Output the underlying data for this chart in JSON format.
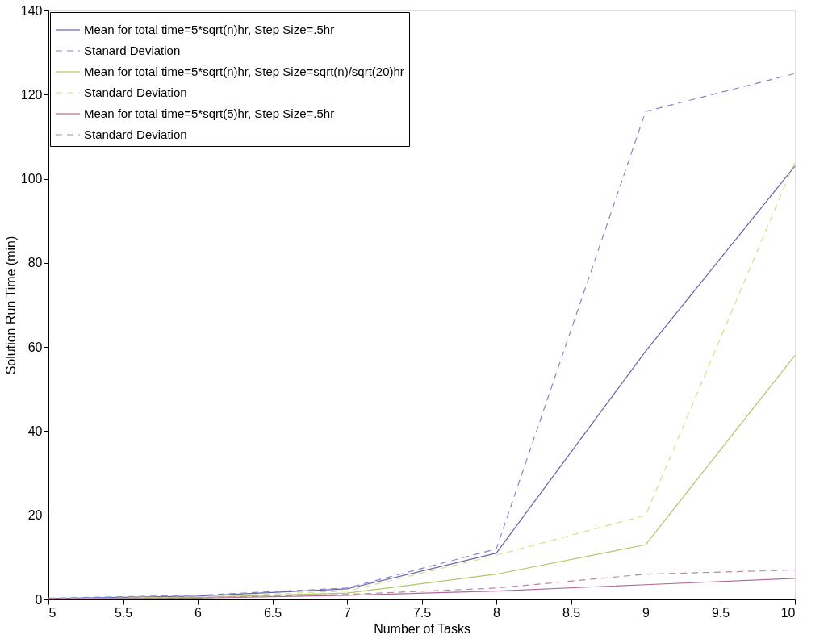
{
  "chart_data": {
    "type": "line",
    "xlabel": "Number of Tasks",
    "ylabel": "Solution Run Time (min)",
    "x": [
      5,
      6,
      7,
      8,
      9,
      10
    ],
    "xlim": [
      5,
      10
    ],
    "xticks": [
      5,
      5.5,
      6,
      6.5,
      7,
      7.5,
      8,
      8.5,
      9,
      9.5,
      10
    ],
    "ylim": [
      0,
      140
    ],
    "yticks": [
      0,
      20,
      40,
      60,
      80,
      100,
      120,
      140
    ],
    "grid": false,
    "legend": "top left",
    "marker": "none",
    "series": [
      {
        "name": "Mean for total time=5*sqrt(n)hr, Step Size=.5hr",
        "color": "#6464ac",
        "line_style": "solid",
        "values": [
          0.2,
          0.8,
          2.5,
          11,
          59,
          103
        ]
      },
      {
        "name": "Stanard Deviation",
        "color": "#8585d4",
        "line_style": "dashed",
        "values": [
          0.3,
          1,
          2.7,
          12,
          116,
          125
        ]
      },
      {
        "name": "Mean for total time=5*sqrt(n)hr, Step Size=sqrt(n)/sqrt(20)hr",
        "color": "#b3c46a",
        "line_style": "solid",
        "values": [
          0.1,
          0.5,
          1.5,
          6,
          13,
          58
        ]
      },
      {
        "name": "Standard Deviation",
        "color": "#d6df8a",
        "line_style": "dashed",
        "values": [
          0.1,
          0.6,
          2,
          10.5,
          20,
          104
        ]
      },
      {
        "name": "Mean for total time=5*sqrt(5)hr, Step Size=.5hr",
        "color": "#b06a9a",
        "line_style": "solid",
        "values": [
          0.05,
          0.3,
          1,
          2,
          3.5,
          5
        ]
      },
      {
        "name": "Standard Deviation",
        "color": "#b98aa0",
        "line_style": "dashed",
        "values": [
          0.1,
          0.4,
          1.2,
          2.7,
          6,
          7
        ]
      }
    ]
  }
}
